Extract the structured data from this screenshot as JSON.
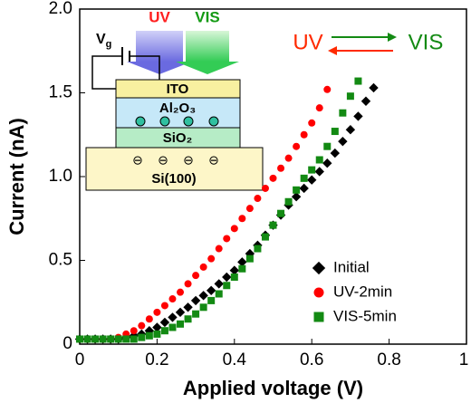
{
  "chart_data": {
    "type": "scatter",
    "x_label": "Applied voltage (V)",
    "y_label": "Current (nA)",
    "xlim": [
      0,
      1
    ],
    "ylim": [
      0,
      2
    ],
    "xticks": [
      0,
      0.2,
      0.4,
      0.6,
      0.8,
      1
    ],
    "yticks": [
      0,
      0.5,
      {
        "value": 1,
        "label": "1.0"
      },
      1.5,
      {
        "value": 2,
        "label": "2.0"
      }
    ],
    "legend": "bottom-right",
    "series": [
      {
        "name": "Initial",
        "color": "#000000",
        "marker": "diamond",
        "x": [
          0,
          0.02,
          0.04,
          0.06,
          0.08,
          0.1,
          0.12,
          0.14,
          0.16,
          0.18,
          0.2,
          0.22,
          0.24,
          0.26,
          0.28,
          0.3,
          0.32,
          0.34,
          0.36,
          0.38,
          0.4,
          0.42,
          0.44,
          0.46,
          0.48,
          0.5,
          0.52,
          0.54,
          0.56,
          0.58,
          0.6,
          0.62,
          0.64,
          0.66,
          0.68,
          0.7,
          0.72,
          0.74,
          0.76
        ],
        "values": [
          0.03,
          0.03,
          0.03,
          0.03,
          0.03,
          0.03,
          0.04,
          0.05,
          0.06,
          0.08,
          0.1,
          0.13,
          0.16,
          0.19,
          0.22,
          0.26,
          0.29,
          0.32,
          0.36,
          0.4,
          0.44,
          0.49,
          0.54,
          0.59,
          0.65,
          0.71,
          0.77,
          0.83,
          0.88,
          0.93,
          0.98,
          1.03,
          1.08,
          1.14,
          1.21,
          1.28,
          1.36,
          1.45,
          1.53
        ]
      },
      {
        "name": "UV-2min",
        "color": "#ff0000",
        "marker": "circle",
        "x": [
          0,
          0.02,
          0.04,
          0.06,
          0.08,
          0.1,
          0.12,
          0.14,
          0.16,
          0.18,
          0.2,
          0.22,
          0.24,
          0.26,
          0.28,
          0.3,
          0.32,
          0.34,
          0.36,
          0.38,
          0.4,
          0.42,
          0.44,
          0.46,
          0.48,
          0.5,
          0.52,
          0.54,
          0.56,
          0.58,
          0.6,
          0.62,
          0.64
        ],
        "values": [
          0.03,
          0.03,
          0.03,
          0.03,
          0.03,
          0.04,
          0.06,
          0.08,
          0.11,
          0.15,
          0.19,
          0.23,
          0.27,
          0.31,
          0.36,
          0.41,
          0.46,
          0.51,
          0.57,
          0.63,
          0.69,
          0.75,
          0.81,
          0.87,
          0.93,
          0.99,
          1.05,
          1.11,
          1.18,
          1.25,
          1.32,
          1.41,
          1.52
        ]
      },
      {
        "name": "VIS-5min",
        "color": "#138a13",
        "marker": "square",
        "x": [
          0,
          0.02,
          0.04,
          0.06,
          0.08,
          0.1,
          0.12,
          0.14,
          0.16,
          0.18,
          0.2,
          0.22,
          0.24,
          0.26,
          0.28,
          0.3,
          0.32,
          0.34,
          0.36,
          0.38,
          0.4,
          0.42,
          0.44,
          0.46,
          0.48,
          0.5,
          0.52,
          0.54,
          0.56,
          0.58,
          0.6,
          0.62,
          0.64,
          0.66,
          0.68,
          0.7,
          0.72
        ],
        "values": [
          0.03,
          0.03,
          0.03,
          0.03,
          0.03,
          0.03,
          0.03,
          0.03,
          0.04,
          0.05,
          0.06,
          0.08,
          0.1,
          0.12,
          0.15,
          0.18,
          0.22,
          0.26,
          0.3,
          0.35,
          0.4,
          0.45,
          0.51,
          0.57,
          0.64,
          0.71,
          0.78,
          0.85,
          0.92,
          0.99,
          1.04,
          1.1,
          1.18,
          1.27,
          1.38,
          1.48,
          1.57
        ]
      }
    ],
    "annotation": {
      "left": "UV",
      "right": "VIS"
    },
    "inset": {
      "beam_uv": "UV",
      "beam_vis": "VIS",
      "gate": {
        "main": "V",
        "sub": "g"
      },
      "layers": [
        "ITO",
        "Al₂O₃",
        "SiO₂",
        "Si(100)"
      ],
      "charge": "⊖"
    }
  }
}
